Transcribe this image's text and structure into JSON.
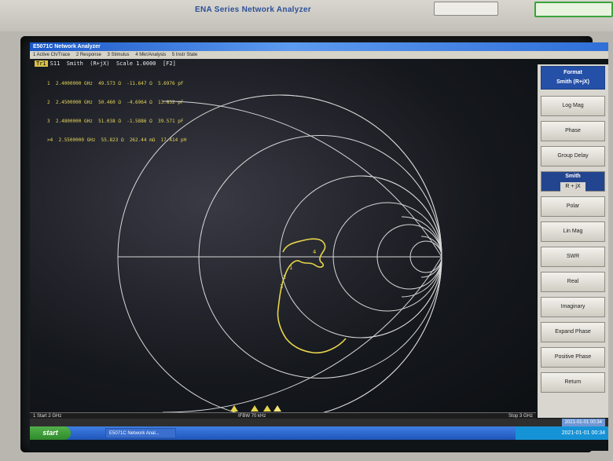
{
  "device": {
    "brand": "ENA Series  Network Analyzer",
    "top_buttons": [
      "",
      "",
      ""
    ]
  },
  "window": {
    "title": "E5071C Network Analyzer",
    "menu": [
      "1 Active Ch/Trace",
      "2 Response",
      "3 Stimulus",
      "4 Mkr/Analysis",
      "5 Instr State"
    ]
  },
  "trace": {
    "tag": "Tr1",
    "header": "S11  Smith  (R+jX)  Scale 1.0000  [F2]",
    "markers": [
      {
        "id": "1",
        "freq": "2.4000000 GHz",
        "r": "49.573 Ω",
        "x": "-11.647 Ω",
        "l": "5.6976 pF"
      },
      {
        "id": "2",
        "freq": "2.4500000 GHz",
        "r": "50.460 Ω",
        "x": "-4.6964 Ω",
        "l": "13.832 pF"
      },
      {
        "id": "3",
        "freq": "2.4800000 GHz",
        "r": "51.038 Ω",
        "x": "-1.5886 Ω",
        "l": "39.571 pF"
      },
      {
        "id": ">4",
        "freq": "2.5500000 GHz",
        "r": "55.823 Ω",
        "x": "262.44 mΩ",
        "l": "17.414 pH"
      }
    ]
  },
  "softkeys": {
    "header_title": "Format",
    "header_value": "Smith (R+jX)",
    "items": [
      {
        "label": "Log Mag"
      },
      {
        "label": "Phase"
      },
      {
        "label": "Group Delay"
      },
      {
        "label": "Smith",
        "sub": "R + jX",
        "active": true
      },
      {
        "label": "Polar"
      },
      {
        "label": "Lin Mag"
      },
      {
        "label": "SWR"
      },
      {
        "label": "Real"
      },
      {
        "label": "Imaginary"
      },
      {
        "label": "Expand Phase"
      },
      {
        "label": "Positive Phase"
      },
      {
        "label": "Return"
      }
    ]
  },
  "status": {
    "start": "1  Start 2 GHz",
    "ifbw": "IFBW 70 kHz",
    "stop": "Stop 3 GHz"
  },
  "info": {
    "right": "2021-01-01 00:34"
  },
  "taskbar": {
    "start_label": "start",
    "app_label": "E5071C Network Anal...",
    "clock": "2021-01-01 00:34"
  },
  "colors": {
    "trace": "#e7d54a",
    "grid": "#d7d7d7",
    "softkey_active": "#23448f"
  }
}
